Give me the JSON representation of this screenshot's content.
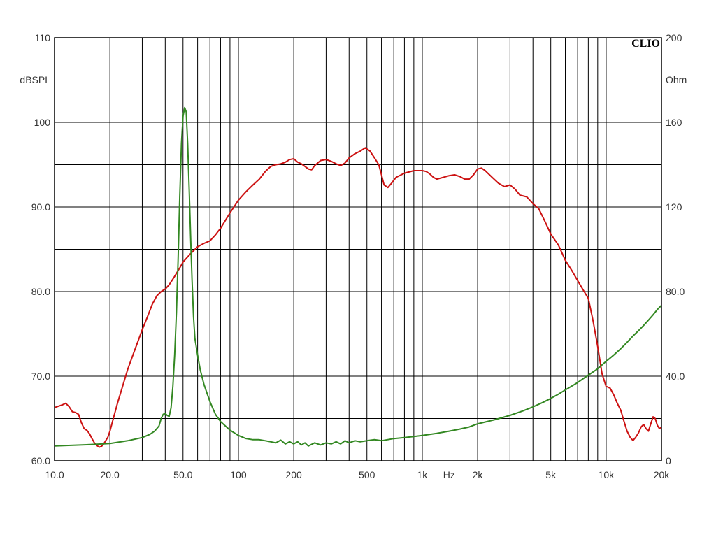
{
  "chart_data": {
    "type": "line",
    "brand": "CLIO",
    "x_scale": "log",
    "xlim": [
      10,
      20000
    ],
    "x_ticks": [
      {
        "v": 10,
        "label": "10.0"
      },
      {
        "v": 20,
        "label": "20.0"
      },
      {
        "v": 50,
        "label": "50.0"
      },
      {
        "v": 100,
        "label": "100"
      },
      {
        "v": 200,
        "label": "200"
      },
      {
        "v": 500,
        "label": "500"
      },
      {
        "v": 1000,
        "label": "1k"
      },
      {
        "v": 2000,
        "label": "2k"
      },
      {
        "v": 5000,
        "label": "5k"
      },
      {
        "v": 10000,
        "label": "10k"
      },
      {
        "v": 20000,
        "label": "20k"
      }
    ],
    "x_unit": "Hz",
    "x_unit_at": 1400,
    "grid": true,
    "y_left": {
      "unit": "dBSPL",
      "lim": [
        60,
        110
      ],
      "labels": [
        {
          "v": 60,
          "label": "60.0"
        },
        {
          "v": 70,
          "label": "70.0"
        },
        {
          "v": 80,
          "label": "80.0"
        },
        {
          "v": 90,
          "label": "90.0"
        },
        {
          "v": 100,
          "label": "100"
        },
        {
          "v": 110,
          "label": "110"
        }
      ]
    },
    "y_right": {
      "unit": "Ohm",
      "lim": [
        0,
        200
      ],
      "labels": [
        {
          "v": 0,
          "label": "0"
        },
        {
          "v": 40,
          "label": "40.0"
        },
        {
          "v": 80,
          "label": "80.0"
        },
        {
          "v": 120,
          "label": "120"
        },
        {
          "v": 160,
          "label": "160"
        },
        {
          "v": 200,
          "label": "200"
        }
      ]
    },
    "series": [
      {
        "axis": "left",
        "color": "#cc1111",
        "points": [
          [
            10,
            66.3
          ],
          [
            11,
            66.6
          ],
          [
            11.5,
            66.8
          ],
          [
            12,
            66.4
          ],
          [
            12.5,
            65.8
          ],
          [
            13,
            65.7
          ],
          [
            13.5,
            65.5
          ],
          [
            14,
            64.5
          ],
          [
            14.5,
            63.8
          ],
          [
            15,
            63.6
          ],
          [
            15.5,
            63.2
          ],
          [
            16,
            62.6
          ],
          [
            16.5,
            62.1
          ],
          [
            17,
            61.8
          ],
          [
            17.5,
            61.6
          ],
          [
            18,
            61.7
          ],
          [
            18.5,
            62.0
          ],
          [
            19,
            62.4
          ],
          [
            19.5,
            62.8
          ],
          [
            20,
            63.5
          ],
          [
            21,
            65.2
          ],
          [
            22,
            66.8
          ],
          [
            23,
            68.2
          ],
          [
            25,
            70.8
          ],
          [
            27,
            72.8
          ],
          [
            30,
            75.5
          ],
          [
            32,
            77.0
          ],
          [
            34,
            78.5
          ],
          [
            36,
            79.5
          ],
          [
            38,
            80.0
          ],
          [
            40,
            80.3
          ],
          [
            42,
            80.8
          ],
          [
            45,
            81.8
          ],
          [
            48,
            82.8
          ],
          [
            50,
            83.5
          ],
          [
            55,
            84.5
          ],
          [
            60,
            85.3
          ],
          [
            65,
            85.7
          ],
          [
            70,
            86.0
          ],
          [
            75,
            86.7
          ],
          [
            80,
            87.5
          ],
          [
            90,
            89.3
          ],
          [
            100,
            90.8
          ],
          [
            110,
            91.8
          ],
          [
            120,
            92.6
          ],
          [
            130,
            93.3
          ],
          [
            140,
            94.2
          ],
          [
            150,
            94.8
          ],
          [
            160,
            95.0
          ],
          [
            170,
            95.1
          ],
          [
            180,
            95.3
          ],
          [
            190,
            95.6
          ],
          [
            200,
            95.7
          ],
          [
            210,
            95.3
          ],
          [
            220,
            95.1
          ],
          [
            230,
            94.8
          ],
          [
            240,
            94.5
          ],
          [
            250,
            94.4
          ],
          [
            260,
            94.9
          ],
          [
            280,
            95.5
          ],
          [
            300,
            95.6
          ],
          [
            320,
            95.4
          ],
          [
            340,
            95.1
          ],
          [
            360,
            94.9
          ],
          [
            380,
            95.2
          ],
          [
            400,
            95.8
          ],
          [
            430,
            96.3
          ],
          [
            460,
            96.6
          ],
          [
            490,
            97.0
          ],
          [
            520,
            96.6
          ],
          [
            550,
            95.8
          ],
          [
            580,
            95.0
          ],
          [
            600,
            93.8
          ],
          [
            620,
            92.6
          ],
          [
            650,
            92.3
          ],
          [
            680,
            92.8
          ],
          [
            720,
            93.5
          ],
          [
            800,
            94.0
          ],
          [
            900,
            94.3
          ],
          [
            1000,
            94.3
          ],
          [
            1050,
            94.2
          ],
          [
            1100,
            93.9
          ],
          [
            1150,
            93.5
          ],
          [
            1200,
            93.3
          ],
          [
            1300,
            93.5
          ],
          [
            1400,
            93.7
          ],
          [
            1500,
            93.8
          ],
          [
            1600,
            93.6
          ],
          [
            1700,
            93.3
          ],
          [
            1800,
            93.3
          ],
          [
            1900,
            93.8
          ],
          [
            2000,
            94.5
          ],
          [
            2100,
            94.6
          ],
          [
            2200,
            94.3
          ],
          [
            2400,
            93.5
          ],
          [
            2600,
            92.8
          ],
          [
            2800,
            92.4
          ],
          [
            3000,
            92.6
          ],
          [
            3200,
            92.1
          ],
          [
            3400,
            91.4
          ],
          [
            3700,
            91.2
          ],
          [
            4000,
            90.4
          ],
          [
            4300,
            89.8
          ],
          [
            4600,
            88.5
          ],
          [
            5000,
            86.8
          ],
          [
            5500,
            85.5
          ],
          [
            6000,
            83.7
          ],
          [
            6500,
            82.5
          ],
          [
            7000,
            81.3
          ],
          [
            7500,
            80.2
          ],
          [
            8000,
            79.2
          ],
          [
            8500,
            76.5
          ],
          [
            9000,
            73.5
          ],
          [
            9500,
            70.3
          ],
          [
            10000,
            68.8
          ],
          [
            10500,
            68.6
          ],
          [
            11000,
            67.8
          ],
          [
            11500,
            66.8
          ],
          [
            12000,
            66.0
          ],
          [
            12500,
            64.7
          ],
          [
            13000,
            63.5
          ],
          [
            13500,
            62.8
          ],
          [
            14000,
            62.4
          ],
          [
            14500,
            62.8
          ],
          [
            15000,
            63.3
          ],
          [
            15500,
            64.0
          ],
          [
            16000,
            64.3
          ],
          [
            16500,
            63.8
          ],
          [
            17000,
            63.5
          ],
          [
            17500,
            64.4
          ],
          [
            18000,
            65.2
          ],
          [
            18500,
            65.0
          ],
          [
            19000,
            64.2
          ],
          [
            19500,
            63.8
          ],
          [
            20000,
            64.0
          ]
        ]
      },
      {
        "axis": "right",
        "color": "#338822",
        "points": [
          [
            10,
            7.0
          ],
          [
            15,
            7.6
          ],
          [
            20,
            8.2
          ],
          [
            25,
            9.5
          ],
          [
            30,
            11.0
          ],
          [
            33,
            12.5
          ],
          [
            35,
            14.0
          ],
          [
            37,
            16.5
          ],
          [
            38,
            20.0
          ],
          [
            39,
            22.0
          ],
          [
            40,
            22.3
          ],
          [
            41,
            21.5
          ],
          [
            42,
            21.0
          ],
          [
            43,
            25.0
          ],
          [
            44,
            35.0
          ],
          [
            45,
            50.0
          ],
          [
            46,
            70.0
          ],
          [
            47,
            95.0
          ],
          [
            48,
            125.0
          ],
          [
            49,
            150.0
          ],
          [
            50,
            163.0
          ],
          [
            51,
            167.0
          ],
          [
            52,
            165.0
          ],
          [
            53,
            150.0
          ],
          [
            54,
            128.0
          ],
          [
            55,
            105.0
          ],
          [
            56,
            85.0
          ],
          [
            57,
            68.0
          ],
          [
            58,
            58.0
          ],
          [
            60,
            50.0
          ],
          [
            62,
            43.0
          ],
          [
            65,
            36.0
          ],
          [
            70,
            28.0
          ],
          [
            75,
            22.0
          ],
          [
            80,
            18.5
          ],
          [
            90,
            14.5
          ],
          [
            100,
            12.0
          ],
          [
            110,
            10.5
          ],
          [
            120,
            10.0
          ],
          [
            130,
            10.0
          ],
          [
            140,
            9.5
          ],
          [
            150,
            9.0
          ],
          [
            160,
            8.5
          ],
          [
            170,
            9.8
          ],
          [
            180,
            8.0
          ],
          [
            190,
            9.0
          ],
          [
            200,
            8.0
          ],
          [
            210,
            9.0
          ],
          [
            220,
            7.5
          ],
          [
            230,
            8.5
          ],
          [
            240,
            7.0
          ],
          [
            260,
            8.5
          ],
          [
            280,
            7.5
          ],
          [
            300,
            8.5
          ],
          [
            320,
            8.0
          ],
          [
            340,
            9.0
          ],
          [
            360,
            8.0
          ],
          [
            380,
            9.5
          ],
          [
            400,
            8.5
          ],
          [
            430,
            9.5
          ],
          [
            460,
            9.0
          ],
          [
            500,
            9.5
          ],
          [
            550,
            10.0
          ],
          [
            600,
            9.5
          ],
          [
            700,
            10.5
          ],
          [
            800,
            11.0
          ],
          [
            900,
            11.5
          ],
          [
            1000,
            12.0
          ],
          [
            1200,
            13.0
          ],
          [
            1400,
            14.0
          ],
          [
            1600,
            15.0
          ],
          [
            1800,
            16.0
          ],
          [
            2000,
            17.5
          ],
          [
            2500,
            19.5
          ],
          [
            3000,
            21.5
          ],
          [
            3500,
            23.5
          ],
          [
            4000,
            25.5
          ],
          [
            4500,
            27.5
          ],
          [
            5000,
            29.5
          ],
          [
            5500,
            31.5
          ],
          [
            6000,
            33.5
          ],
          [
            7000,
            37.0
          ],
          [
            8000,
            40.5
          ],
          [
            9000,
            43.5
          ],
          [
            10000,
            47.0
          ],
          [
            11000,
            50.0
          ],
          [
            12000,
            53.0
          ],
          [
            13000,
            56.0
          ],
          [
            14000,
            59.0
          ],
          [
            15000,
            61.5
          ],
          [
            16000,
            64.0
          ],
          [
            17000,
            66.5
          ],
          [
            18000,
            69.0
          ],
          [
            19000,
            71.5
          ],
          [
            20000,
            73.5
          ]
        ]
      }
    ]
  }
}
